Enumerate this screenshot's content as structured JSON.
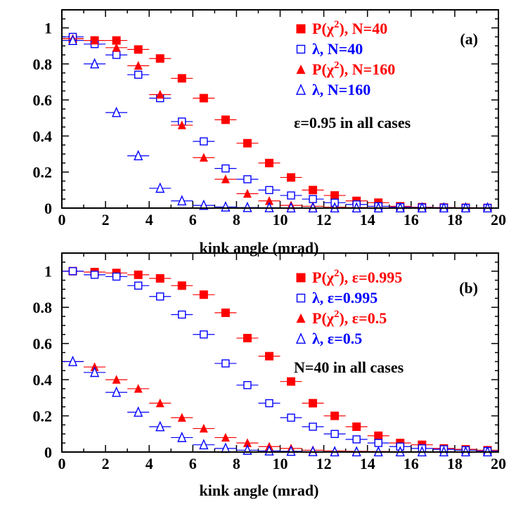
{
  "colors": {
    "red": "#ff0000",
    "blue": "#0000ff",
    "black": "#000000"
  },
  "chart_data": [
    {
      "type": "scatter",
      "panel_label": "(a)",
      "xlabel": "kink angle (mrad)",
      "ylabel": "",
      "xlim": [
        0,
        20
      ],
      "ylim": [
        0,
        1.1
      ],
      "xticks": [
        "0",
        "2",
        "4",
        "6",
        "8",
        "10",
        "12",
        "14",
        "16",
        "18",
        "20"
      ],
      "yticks": [
        "0",
        "0.2",
        "0.4",
        "0.6",
        "0.8",
        "1"
      ],
      "x": [
        0.5,
        1.5,
        2.5,
        3.5,
        4.5,
        5.5,
        6.5,
        7.5,
        8.5,
        9.5,
        10.5,
        11.5,
        12.5,
        13.5,
        14.5,
        15.5,
        16.5,
        17.5,
        18.5,
        19.5
      ],
      "x_error": 0.5,
      "note": "ε=0.95 in all cases",
      "legend_position": "top-right",
      "series": [
        {
          "name": "P(χ²), N=40",
          "legend_main": "P(χ",
          "legend_sup": "2",
          "legend_tail": "), N=40",
          "marker": "filled-square",
          "color": "#ff0000",
          "values": [
            0.94,
            0.93,
            0.93,
            0.88,
            0.83,
            0.72,
            0.61,
            0.49,
            0.36,
            0.25,
            0.17,
            0.1,
            0.07,
            0.04,
            0.03,
            0.01,
            0.005,
            0.003,
            0.002,
            0.001
          ]
        },
        {
          "name": "λ, N=40",
          "legend_main": "λ, N=40",
          "legend_sup": "",
          "legend_tail": "",
          "marker": "open-square",
          "color": "#0000ff",
          "values": [
            0.95,
            0.91,
            0.85,
            0.74,
            0.61,
            0.48,
            0.37,
            0.22,
            0.16,
            0.1,
            0.07,
            0.05,
            0.03,
            0.02,
            0.01,
            0.005,
            0.003,
            0.002,
            0.001,
            0.001
          ]
        },
        {
          "name": "P(χ²), N=160",
          "legend_main": "P(χ",
          "legend_sup": "2",
          "legend_tail": "), N=160",
          "marker": "filled-triangle",
          "color": "#ff0000",
          "values": [
            0.94,
            0.93,
            0.89,
            0.79,
            0.63,
            0.46,
            0.28,
            0.16,
            0.08,
            0.04,
            0.015,
            0.01,
            0.005,
            0.003,
            0.002,
            0.001,
            0.001,
            0.001,
            0.001,
            0.001
          ]
        },
        {
          "name": "λ, N=160",
          "legend_main": "λ, N=160",
          "legend_sup": "",
          "legend_tail": "",
          "marker": "open-triangle",
          "color": "#0000ff",
          "values": [
            0.93,
            0.8,
            0.53,
            0.29,
            0.11,
            0.04,
            0.015,
            0.006,
            0.003,
            0.002,
            0.001,
            0.001,
            0.001,
            0.001,
            0.001,
            0.001,
            0.001,
            0.001,
            0.001,
            0.001
          ]
        }
      ]
    },
    {
      "type": "scatter",
      "panel_label": "(b)",
      "xlabel": "kink angle (mrad)",
      "ylabel": "",
      "xlim": [
        0,
        20
      ],
      "ylim": [
        0,
        1.1
      ],
      "xticks": [
        "0",
        "2",
        "4",
        "6",
        "8",
        "10",
        "12",
        "14",
        "16",
        "18",
        "20"
      ],
      "yticks": [
        "0",
        "0.2",
        "0.4",
        "0.6",
        "0.8",
        "1"
      ],
      "x": [
        0.5,
        1.5,
        2.5,
        3.5,
        4.5,
        5.5,
        6.5,
        7.5,
        8.5,
        9.5,
        10.5,
        11.5,
        12.5,
        13.5,
        14.5,
        15.5,
        16.5,
        17.5,
        18.5,
        19.5
      ],
      "x_error": 0.5,
      "note": "N=40 in all cases",
      "legend_position": "top-right",
      "series": [
        {
          "name": "P(χ²), ε=0.995",
          "legend_main": "P(χ",
          "legend_sup": "2",
          "legend_tail": "), ε=0.995",
          "marker": "filled-square",
          "color": "#ff0000",
          "values": [
            1.0,
            0.995,
            0.99,
            0.98,
            0.96,
            0.92,
            0.87,
            0.77,
            0.63,
            0.53,
            0.39,
            0.27,
            0.2,
            0.14,
            0.09,
            0.05,
            0.04,
            0.02,
            0.015,
            0.01
          ]
        },
        {
          "name": "λ, ε=0.995",
          "legend_main": "λ, ε=0.995",
          "legend_sup": "",
          "legend_tail": "",
          "marker": "open-square",
          "color": "#0000ff",
          "values": [
            1.0,
            0.98,
            0.97,
            0.92,
            0.86,
            0.76,
            0.65,
            0.49,
            0.37,
            0.27,
            0.19,
            0.14,
            0.1,
            0.07,
            0.05,
            0.03,
            0.02,
            0.015,
            0.01,
            0.005
          ]
        },
        {
          "name": "P(χ²), ε=0.5",
          "legend_main": "P(χ",
          "legend_sup": "2",
          "legend_tail": "), ε=0.5",
          "marker": "filled-triangle",
          "color": "#ff0000",
          "values": [
            0.5,
            0.47,
            0.4,
            0.35,
            0.27,
            0.19,
            0.13,
            0.08,
            0.05,
            0.03,
            0.02,
            0.01,
            0.006,
            0.004,
            0.003,
            0.002,
            0.001,
            0.001,
            0.001,
            0.001
          ]
        },
        {
          "name": "λ, ε=0.5",
          "legend_main": "λ, ε=0.5",
          "legend_sup": "",
          "legend_tail": "",
          "marker": "open-triangle",
          "color": "#0000ff",
          "values": [
            0.5,
            0.44,
            0.33,
            0.22,
            0.14,
            0.08,
            0.04,
            0.02,
            0.01,
            0.006,
            0.004,
            0.002,
            0.001,
            0.001,
            0.001,
            0.001,
            0.001,
            0.001,
            0.001,
            0.001
          ]
        }
      ]
    }
  ]
}
